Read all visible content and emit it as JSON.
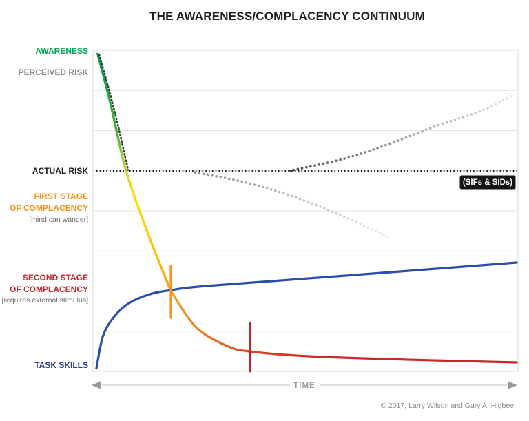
{
  "colors": {
    "awareness": "#00a651",
    "perceived": "#8a8c8e",
    "actual": "#231f20",
    "first_stage": "#f7941d",
    "second_stage": "#c9242b",
    "task_skills": "#2b3990",
    "note": "#6d6e71",
    "time": "#9a9a9a",
    "copyright": "#8a8a8a",
    "badge_bg": "#141414",
    "badge_text": "#ffffff",
    "grid": "#e4e4e4",
    "border": "#d9d9d9"
  },
  "labels": {
    "awareness": "AWARENESS",
    "perceived_risk": "PERCEIVED RISK",
    "actual_risk": "ACTUAL RISK",
    "first_stage_l1": "FIRST STAGE",
    "first_stage_l2": "OF COMPLACENCY",
    "first_stage_note": "[mind can wander]",
    "second_stage_l1": "SECOND STAGE",
    "second_stage_l2": "OF COMPLACENCY",
    "second_stage_note": "[requires external stimulus]",
    "task_skills": "TASK SKILLS",
    "sifs_badge": "(SIFs & SIDs)",
    "copyright": "© 2017, Larry Wilson and Gary A. Higbee"
  },
  "chart_data": {
    "type": "line",
    "title": "THE AWARENESS/COMPLACENCY CONTINUUM",
    "xlabel": "TIME",
    "ylabel": "",
    "x_axis": {
      "label": "TIME",
      "range": [
        0,
        1
      ],
      "arrows": "both",
      "ticks": []
    },
    "y_axis": {
      "label": "",
      "range": [
        0,
        1
      ],
      "gridlines": 7,
      "ticks": []
    },
    "legend": "none",
    "annotations": [
      {
        "text": "(SIFs & SIDs)",
        "position": "right-of-actual-risk-line, below"
      }
    ],
    "series": [
      {
        "name": "perceived-risk-lower-divergence",
        "meaning": "perceived risk drifting below actual risk (fading)",
        "style": "dots",
        "width": 3.6,
        "gradient": {
          "stops": [
            [
              0,
              "#8c8c8c"
            ],
            [
              0.6,
              "#c6c6c6"
            ],
            [
              1,
              "#f0f0f0"
            ]
          ]
        },
        "points": [
          [
            0.24,
            0.62
          ],
          [
            0.348,
            0.592
          ],
          [
            0.457,
            0.551
          ],
          [
            0.575,
            0.491
          ],
          [
            0.7,
            0.416
          ]
        ]
      },
      {
        "name": "perceived-risk-upper-divergence",
        "meaning": "perceived risk rising above actual risk (fading)",
        "style": "dots",
        "width": 3.6,
        "gradient": {
          "stops": [
            [
              0,
              "#4a4a4a"
            ],
            [
              0.5,
              "#9a9a9a"
            ],
            [
              1,
              "#e8e8e8"
            ]
          ]
        },
        "points": [
          [
            0.462,
            0.6245
          ],
          [
            0.592,
            0.663
          ],
          [
            0.7,
            0.71
          ],
          [
            0.807,
            0.764
          ],
          [
            0.916,
            0.813
          ],
          [
            0.989,
            0.861
          ]
        ]
      },
      {
        "name": "actual-risk-line",
        "meaning": "constant actual risk level",
        "style": "dense",
        "width": 3.2,
        "color": "#1a1a1a",
        "points": [
          [
            0.008,
            0.6245
          ],
          [
            0.997,
            0.6245
          ]
        ]
      },
      {
        "name": "awareness-decline",
        "meaning": "awareness decaying over time (green to orange)",
        "style": "solid",
        "width": 3.4,
        "gradient": {
          "stops": [
            [
              0,
              "#00a651"
            ],
            [
              0.32,
              "#3fb23a"
            ],
            [
              0.5,
              "#d6dc23"
            ],
            [
              0.62,
              "#fcdc0a"
            ],
            [
              0.85,
              "#fbc011"
            ],
            [
              1,
              "#f8a01a"
            ]
          ]
        },
        "points": [
          [
            0.011,
            0.989
          ],
          [
            0.041,
            0.835
          ],
          [
            0.078,
            0.624
          ],
          [
            0.13,
            0.427
          ],
          [
            0.183,
            0.251
          ]
        ]
      },
      {
        "name": "complacency-tail",
        "meaning": "continued decline through first and second stage of complacency (orange to red)",
        "style": "solid",
        "width": 3.2,
        "gradient": {
          "stops": [
            [
              0,
              "#f8a01a"
            ],
            [
              0.1,
              "#ef7d23"
            ],
            [
              0.25,
              "#d94a27"
            ],
            [
              0.45,
              "#cc2a28"
            ],
            [
              1,
              "#c92330"
            ]
          ]
        },
        "points": [
          [
            0.183,
            0.251
          ],
          [
            0.243,
            0.137
          ],
          [
            0.316,
            0.079
          ],
          [
            0.37,
            0.062
          ],
          [
            0.511,
            0.047
          ],
          [
            0.754,
            0.036
          ],
          [
            0.997,
            0.028
          ]
        ]
      },
      {
        "name": "perceived-risk-track",
        "meaning": "perceived risk tracking awareness down to actual risk",
        "style": "track",
        "width": 2.6,
        "color": "#3a3a3a",
        "points": [
          [
            0.0146,
            0.987
          ],
          [
            0.0502,
            0.813
          ],
          [
            0.0827,
            0.627
          ]
        ]
      },
      {
        "name": "task-skills-curve",
        "meaning": "task skills growing rapidly then slowly",
        "style": "solid",
        "width": 3.2,
        "color": "#2b4ea8",
        "points": [
          [
            0.008,
            0.009
          ],
          [
            0.024,
            0.112
          ],
          [
            0.052,
            0.174
          ],
          [
            0.084,
            0.212
          ],
          [
            0.133,
            0.24
          ],
          [
            0.183,
            0.253
          ],
          [
            0.267,
            0.266
          ],
          [
            0.592,
            0.298
          ],
          [
            0.997,
            0.339
          ]
        ]
      },
      {
        "name": "first-stage-marker",
        "meaning": "vertical marker at first stage of complacency",
        "style": "solid",
        "width": 3,
        "color": "#f7941d",
        "points": [
          [
            0.183,
            0.328
          ],
          [
            0.183,
            0.167
          ]
        ]
      },
      {
        "name": "second-stage-marker",
        "meaning": "vertical marker at second stage of complacency",
        "style": "solid",
        "width": 3,
        "color": "#c9242b",
        "points": [
          [
            0.37,
            0.152
          ],
          [
            0.37,
            0.0
          ]
        ]
      }
    ]
  }
}
